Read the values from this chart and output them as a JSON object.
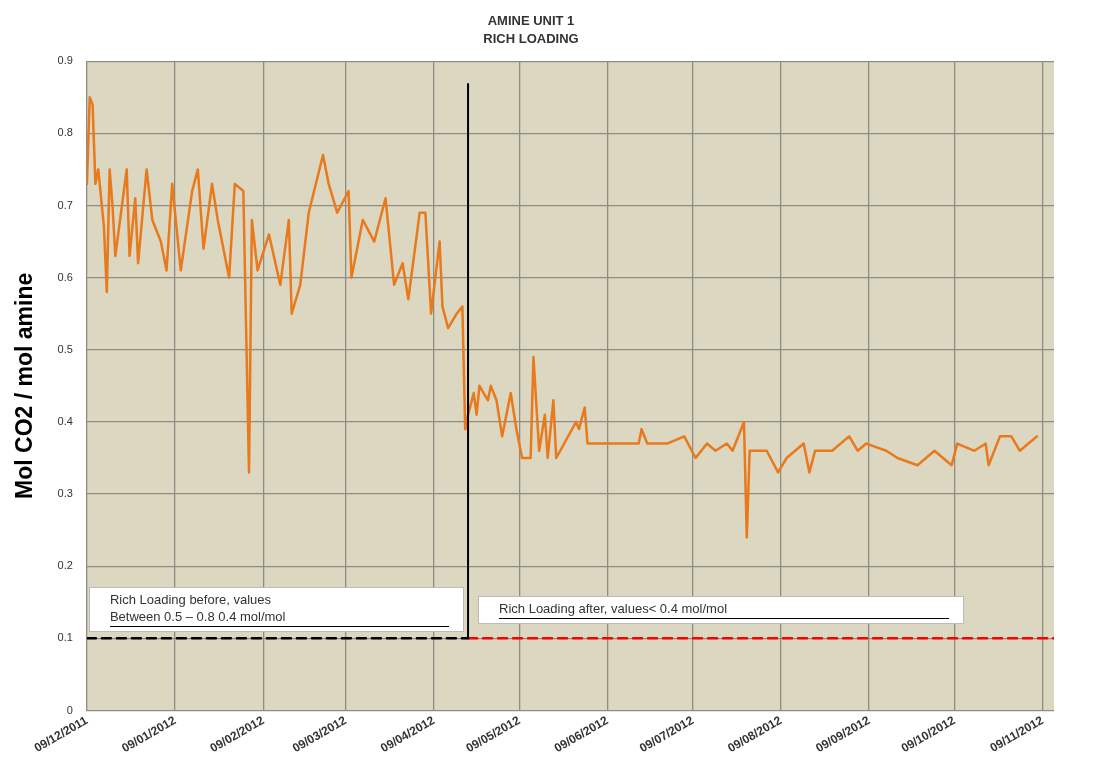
{
  "chart_data": {
    "type": "line",
    "title": "AMINE UNIT 1",
    "subtitle": "RICH LOADING",
    "ylabel": "Mol CO2 / mol amine",
    "x": [
      "2011-12-09",
      "2011-12-10",
      "2011-12-11",
      "2011-12-12",
      "2011-12-13",
      "2011-12-15",
      "2011-12-16",
      "2011-12-17",
      "2011-12-18",
      "2011-12-19",
      "2011-12-23",
      "2011-12-24",
      "2011-12-26",
      "2011-12-27",
      "2011-12-30",
      "2012-01-01",
      "2012-01-04",
      "2012-01-06",
      "2012-01-08",
      "2012-01-11",
      "2012-01-15",
      "2012-01-17",
      "2012-01-19",
      "2012-01-22",
      "2012-01-24",
      "2012-01-28",
      "2012-01-30",
      "2012-02-02",
      "2012-02-04",
      "2012-02-05",
      "2012-02-07",
      "2012-02-11",
      "2012-02-15",
      "2012-02-18",
      "2012-02-19",
      "2012-02-22",
      "2012-02-25",
      "2012-03-01",
      "2012-03-03",
      "2012-03-06",
      "2012-03-10",
      "2012-03-11",
      "2012-03-15",
      "2012-03-19",
      "2012-03-23",
      "2012-03-26",
      "2012-03-29",
      "2012-03-31",
      "2012-04-04",
      "2012-04-06",
      "2012-04-08",
      "2012-04-11",
      "2012-04-12",
      "2012-04-14",
      "2012-04-17",
      "2012-04-19",
      "2012-04-20",
      "2012-04-21",
      "2012-04-23",
      "2012-04-24",
      "2012-04-25",
      "2012-04-28",
      "2012-04-29",
      "2012-05-01",
      "2012-05-03",
      "2012-05-06",
      "2012-05-08",
      "2012-05-10",
      "2012-05-13",
      "2012-05-14",
      "2012-05-16",
      "2012-05-18",
      "2012-05-19",
      "2012-05-21",
      "2012-05-22",
      "2012-05-29",
      "2012-05-30",
      "2012-06-01",
      "2012-06-02",
      "2012-06-20",
      "2012-06-21",
      "2012-06-23",
      "2012-06-30",
      "2012-07-06",
      "2012-07-10",
      "2012-07-14",
      "2012-07-17",
      "2012-07-21",
      "2012-07-23",
      "2012-07-27",
      "2012-07-28",
      "2012-07-29",
      "2012-08-02",
      "2012-08-04",
      "2012-08-08",
      "2012-08-11",
      "2012-08-17",
      "2012-08-19",
      "2012-08-21",
      "2012-08-27",
      "2012-09-02",
      "2012-09-05",
      "2012-09-08",
      "2012-09-15",
      "2012-09-19",
      "2012-09-26",
      "2012-10-02",
      "2012-10-08",
      "2012-10-10",
      "2012-10-16",
      "2012-10-20",
      "2012-10-21",
      "2012-10-25",
      "2012-10-29",
      "2012-11-01",
      "2012-11-04",
      "2012-11-07"
    ],
    "series": [
      {
        "color": "#e8791c",
        "values": [
          0.73,
          0.85,
          0.84,
          0.73,
          0.75,
          0.67,
          0.58,
          0.75,
          0.7,
          0.63,
          0.75,
          0.63,
          0.71,
          0.62,
          0.75,
          0.68,
          0.65,
          0.61,
          0.73,
          0.61,
          0.72,
          0.75,
          0.64,
          0.73,
          0.68,
          0.6,
          0.73,
          0.72,
          0.33,
          0.68,
          0.61,
          0.66,
          0.59,
          0.68,
          0.55,
          0.59,
          0.69,
          0.77,
          0.73,
          0.69,
          0.72,
          0.6,
          0.68,
          0.65,
          0.71,
          0.59,
          0.62,
          0.57,
          0.69,
          0.69,
          0.55,
          0.65,
          0.56,
          0.53,
          0.55,
          0.56,
          0.39,
          0.41,
          0.44,
          0.41,
          0.45,
          0.43,
          0.45,
          0.43,
          0.38,
          0.44,
          0.39,
          0.35,
          0.35,
          0.49,
          0.36,
          0.41,
          0.35,
          0.43,
          0.35,
          0.4,
          0.39,
          0.42,
          0.37,
          0.37,
          0.39,
          0.37,
          0.37,
          0.38,
          0.35,
          0.37,
          0.36,
          0.37,
          0.36,
          0.4,
          0.24,
          0.36,
          0.36,
          0.36,
          0.33,
          0.35,
          0.37,
          0.33,
          0.36,
          0.36,
          0.38,
          0.36,
          0.37,
          0.36,
          0.35,
          0.34,
          0.36,
          0.34,
          0.37,
          0.36,
          0.37,
          0.34,
          0.38,
          0.38,
          0.36,
          0.37,
          0.38
        ]
      },
      {
        "type": "line",
        "color": "#000000",
        "line_style": "dashed",
        "x": [
          "2011-12-09",
          "2012-04-21"
        ],
        "values": [
          0.1,
          0.1
        ]
      },
      {
        "type": "line",
        "color": "#ff0000",
        "line_style": "dashed",
        "x": [
          "2012-04-21",
          "2012-11-13"
        ],
        "values": [
          0.1,
          0.1
        ]
      }
    ],
    "ref_lines": [
      {
        "axis": "x",
        "value": "2012-04-21",
        "color": "#000000"
      }
    ],
    "annotations": [
      "Rich Loading  before, values\nBetween 0.5 – 0.8 0.4 mol/mol",
      "Rich Loading after, values< 0.4 mol/mol"
    ],
    "xlim": [
      "2011-12-09",
      "2012-11-13"
    ],
    "xticks": [
      {
        "value": "2011-12-09",
        "label": "09/12/2011"
      },
      {
        "value": "2012-01-09",
        "label": "09/01/2012"
      },
      {
        "value": "2012-02-09",
        "label": "09/02/2012"
      },
      {
        "value": "2012-03-09",
        "label": "09/03/2012"
      },
      {
        "value": "2012-04-09",
        "label": "09/04/2012"
      },
      {
        "value": "2012-05-09",
        "label": "09/05/2012"
      },
      {
        "value": "2012-06-09",
        "label": "09/06/2012"
      },
      {
        "value": "2012-07-09",
        "label": "09/07/2012"
      },
      {
        "value": "2012-08-09",
        "label": "09/08/2012"
      },
      {
        "value": "2012-09-09",
        "label": "09/09/2012"
      },
      {
        "value": "2012-10-09",
        "label": "09/10/2012"
      },
      {
        "value": "2012-11-09",
        "label": "09/11/2012"
      }
    ],
    "ylim": [
      0,
      0.9
    ],
    "yticks": [
      0,
      0.1,
      0.2,
      0.3,
      0.4,
      0.5,
      0.6,
      0.7,
      0.8,
      0.9
    ],
    "grid": true,
    "legend": false,
    "marker": "none",
    "line_style": "solid"
  }
}
